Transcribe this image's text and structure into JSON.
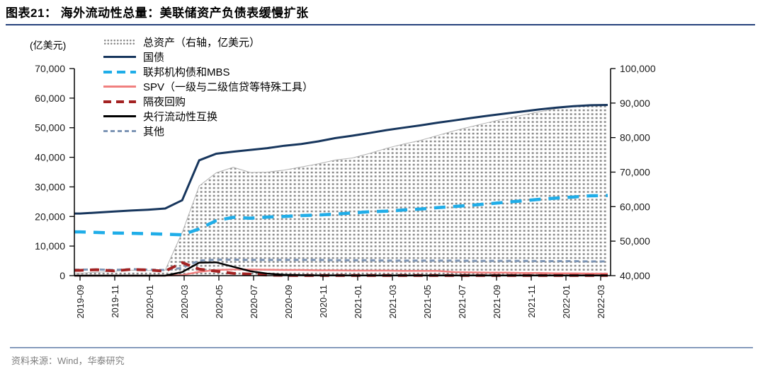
{
  "page": {
    "title": "图表21：  海外流动性总量：美联储资产负债表缓慢扩张",
    "source": "资料来源：Wind，华泰研究"
  },
  "legend": {
    "items": [
      {
        "key": "total_assets",
        "label": "总资产（右轴，亿美元）",
        "color": "#8a8a8a",
        "style": "dotted-area"
      },
      {
        "key": "treasuries",
        "label": "国债",
        "color": "#17365d",
        "style": "solid"
      },
      {
        "key": "mbs",
        "label": "联邦机构债和MBS",
        "color": "#1fade8",
        "style": "dashed"
      },
      {
        "key": "spv",
        "label": "SPV（一级与二级信贷等特殊工具）",
        "color": "#f0807f",
        "style": "solid"
      },
      {
        "key": "repo",
        "label": "隔夜回购",
        "color": "#a32222",
        "style": "dashed"
      },
      {
        "key": "swaps",
        "label": "央行流动性互换",
        "color": "#000000",
        "style": "solid"
      },
      {
        "key": "others",
        "label": "其他",
        "color": "#7d95b5",
        "style": "fine-dashed"
      }
    ]
  },
  "chart_data": {
    "type": "area",
    "subtype": "dotted total-assets area (right axis) + six lines (left axis)",
    "x_monthly": [
      "2019-09",
      "2019-10",
      "2019-11",
      "2019-12",
      "2020-01",
      "2020-02",
      "2020-03",
      "2020-04",
      "2020-05",
      "2020-06",
      "2020-07",
      "2020-08",
      "2020-09",
      "2020-10",
      "2020-11",
      "2020-12",
      "2021-01",
      "2021-02",
      "2021-03",
      "2021-04",
      "2021-05",
      "2021-06",
      "2021-07",
      "2021-08",
      "2021-09",
      "2021-10",
      "2021-11",
      "2021-12",
      "2022-01",
      "2022-02",
      "2022-03",
      "2022-04"
    ],
    "x_axis_ticks": [
      "2019-09",
      "2019-11",
      "2020-01",
      "2020-03",
      "2020-05",
      "2020-07",
      "2020-09",
      "2020-11",
      "2021-01",
      "2021-03",
      "2021-05",
      "2021-07",
      "2021-09",
      "2021-11",
      "2022-01",
      "2022-03"
    ],
    "y_left": {
      "title": "(亿美元)",
      "min": 0,
      "max": 70000,
      "tick_labels": [
        "0",
        "10,000",
        "20,000",
        "30,000",
        "40,000",
        "50,000",
        "60,000",
        "70,000"
      ]
    },
    "y_right": {
      "min": 40000,
      "max": 100000,
      "tick_labels": [
        "40,000",
        "50,000",
        "60,000",
        "70,000",
        "80,000",
        "90,000",
        "100,000"
      ]
    },
    "series": [
      {
        "key": "total_assets",
        "name": "总资产（右轴，亿美元）",
        "axis": "right",
        "style": "dotted-area",
        "color": "#8a8a8a",
        "values": [
          40700,
          41000,
          41300,
          41600,
          41500,
          41600,
          52500,
          66000,
          69800,
          71400,
          69900,
          70000,
          70600,
          71500,
          72400,
          73500,
          74100,
          75400,
          76900,
          78100,
          79200,
          80600,
          82000,
          83200,
          84400,
          85500,
          86500,
          87500,
          88400,
          89000,
          89400,
          89400
        ]
      },
      {
        "key": "others",
        "name": "其他",
        "axis": "left",
        "style": "fine-dashed",
        "color": "#7d95b5",
        "values": [
          2000,
          2100,
          1900,
          2200,
          2000,
          1900,
          2600,
          5100,
          5400,
          5400,
          5300,
          5300,
          5300,
          5300,
          5300,
          5200,
          5200,
          5200,
          5100,
          5100,
          5100,
          5100,
          5100,
          5000,
          5000,
          5000,
          5000,
          4900,
          4900,
          4900,
          4800,
          4800
        ]
      },
      {
        "key": "spv",
        "name": "SPV（一级与二级信贷等特殊工具）",
        "axis": "left",
        "style": "solid",
        "color": "#f0807f",
        "values": [
          0,
          0,
          0,
          0,
          0,
          0,
          200,
          1300,
          1900,
          2100,
          2100,
          2000,
          1900,
          1900,
          1800,
          1800,
          1700,
          1700,
          1700,
          1600,
          1600,
          1600,
          1200,
          1100,
          1000,
          1000,
          900,
          900,
          800,
          800,
          700,
          700
        ]
      },
      {
        "key": "repo",
        "name": "隔夜回购",
        "axis": "left",
        "style": "dashed",
        "color": "#a32222",
        "values": [
          1800,
          2000,
          1600,
          2100,
          1900,
          1500,
          4400,
          2200,
          1500,
          800,
          500,
          200,
          100,
          50,
          50,
          50,
          50,
          50,
          50,
          50,
          50,
          50,
          50,
          50,
          50,
          50,
          50,
          50,
          50,
          50,
          50,
          50
        ]
      },
      {
        "key": "swaps",
        "name": "央行流动性互换",
        "axis": "left",
        "style": "solid",
        "color": "#000000",
        "values": [
          0,
          0,
          0,
          0,
          0,
          0,
          1200,
          4400,
          4500,
          3000,
          1500,
          700,
          300,
          150,
          100,
          100,
          50,
          50,
          50,
          50,
          50,
          50,
          50,
          50,
          50,
          50,
          50,
          50,
          50,
          50,
          50,
          50
        ]
      },
      {
        "key": "mbs",
        "name": "联邦机构债和MBS",
        "axis": "left",
        "style": "dashed",
        "color": "#1fade8",
        "values": [
          14800,
          14600,
          14400,
          14300,
          14200,
          14000,
          13800,
          15800,
          18600,
          19700,
          19400,
          19800,
          20000,
          20300,
          20500,
          20800,
          21200,
          21600,
          21800,
          22200,
          22500,
          23000,
          23400,
          23800,
          24300,
          24800,
          25300,
          25800,
          26200,
          26600,
          27000,
          27100
        ]
      },
      {
        "key": "treasuries",
        "name": "国债",
        "axis": "left",
        "style": "solid",
        "color": "#17365d",
        "values": [
          21000,
          21300,
          21700,
          22000,
          22300,
          22700,
          25500,
          39000,
          41200,
          41900,
          42500,
          43100,
          43900,
          44500,
          45400,
          46500,
          47300,
          48200,
          49200,
          50000,
          50800,
          51700,
          52500,
          53300,
          54100,
          54800,
          55500,
          56200,
          56800,
          57300,
          57600,
          57700
        ]
      }
    ]
  }
}
